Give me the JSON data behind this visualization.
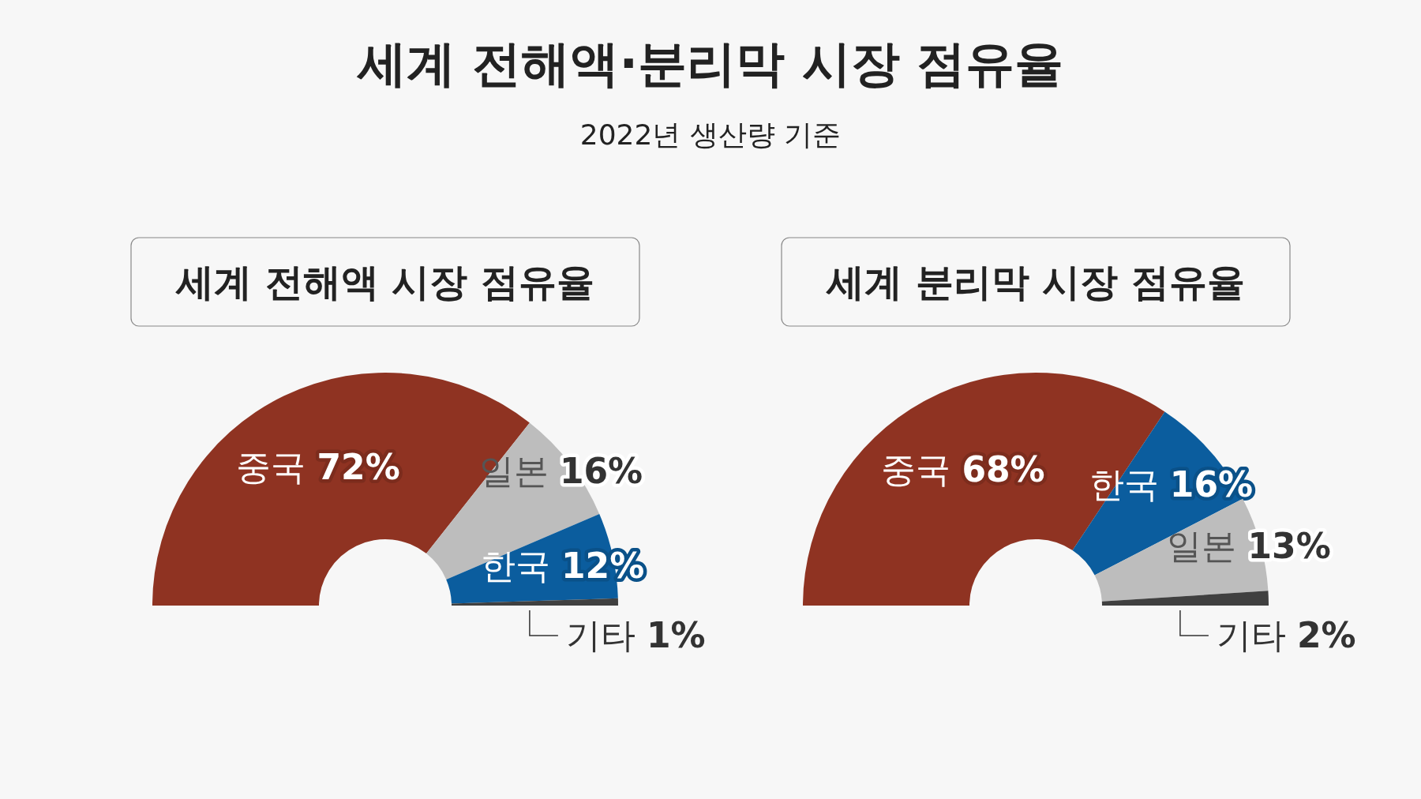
{
  "chart_data": [
    {
      "type": "other",
      "title": "세계 전해액·분리막 시장 점유율",
      "subtitle": "2022년 생산량 기준"
    },
    {
      "type": "donut",
      "title": "세계 전해액 시장 점유율",
      "categories": [
        "중국",
        "일본",
        "한국",
        "기타"
      ],
      "values": [
        72,
        16,
        12,
        1
      ],
      "value_labels": [
        "72%",
        "16%",
        "12%",
        "1%"
      ],
      "colors": [
        "#8f3322",
        "#bdbdbd",
        "#0b5d9e",
        "#404040"
      ]
    },
    {
      "type": "donut",
      "title": "세계 분리막 시장 점유율",
      "categories": [
        "중국",
        "한국",
        "일본",
        "기타"
      ],
      "values": [
        68,
        16,
        13,
        2
      ],
      "value_labels": [
        "68%",
        "16%",
        "13%",
        "2%"
      ],
      "colors": [
        "#8f3322",
        "#0b5d9e",
        "#bdbdbd",
        "#404040"
      ]
    }
  ]
}
